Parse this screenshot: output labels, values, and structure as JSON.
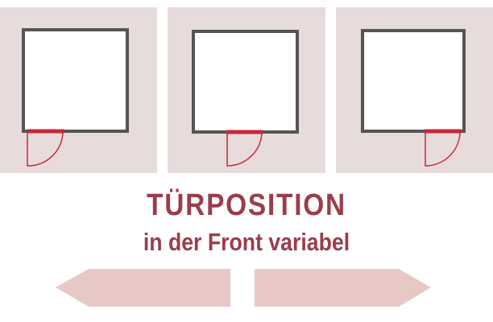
{
  "title": "TÜRPOSITION",
  "subtitle": "in der Front variabel",
  "door_positions": [
    "left",
    "center",
    "right"
  ],
  "colors": {
    "panel_bg": "#e7dcdb",
    "room_wall": "#555555",
    "room_floor": "#ffffff",
    "door": "#c8283d",
    "text": "#9b3d4b",
    "arrow": "#e8c8c5"
  },
  "icons": {
    "left_arrow": "arrow-left-icon",
    "right_arrow": "arrow-right-icon"
  }
}
